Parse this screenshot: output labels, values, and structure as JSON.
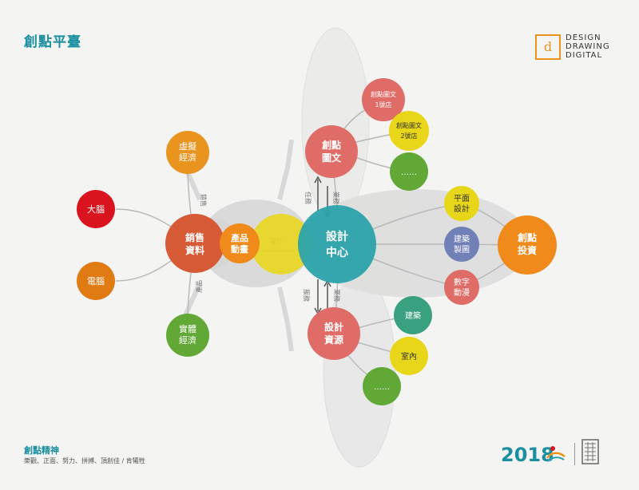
{
  "header": {
    "title": "創點平臺",
    "logo_lines": [
      "DESIGN",
      "DRAWING",
      "DIGITAL"
    ]
  },
  "diagram": {
    "nodes": {
      "virtual_economy": [
        "虛擬",
        "經濟"
      ],
      "brain": [
        "大腦"
      ],
      "computer": [
        "電腦"
      ],
      "sales_data": [
        "銷售",
        "資料"
      ],
      "real_economy": [
        "實體",
        "經濟"
      ],
      "product_animation": [
        "產品",
        "動畫"
      ],
      "design": [
        "設計"
      ],
      "design_center": [
        "設計",
        "中心"
      ],
      "creative_graphics": [
        "創點",
        "圖文"
      ],
      "store_1": [
        "創點圖文",
        "1號店"
      ],
      "store_2": [
        "創點圖文",
        "2號店"
      ],
      "graphics_more": [
        "……"
      ],
      "graphic_design": [
        "平面",
        "設計"
      ],
      "architectural_drawing": [
        "建築",
        "製圖"
      ],
      "digital_animation": [
        "數字",
        "動漫"
      ],
      "creative_investment": [
        "創點",
        "投資"
      ],
      "design_resources": [
        "設計",
        "資源"
      ],
      "architecture": [
        "建築"
      ],
      "interior": [
        "室內"
      ],
      "resources_more": [
        "……"
      ]
    },
    "edge_labels": {
      "sales_virtual": "銷售",
      "sales_real": "產品",
      "design_link": "設計",
      "to_graphics_left": "任務",
      "to_graphics_right": "業務",
      "to_resources_left": "服務",
      "to_resources_right": "業務"
    },
    "colors": {
      "orange": "#e8941f",
      "red": "#d9141e",
      "dark_orange": "#e07a12",
      "sales_red": "#d65a36",
      "green": "#62a836",
      "amber": "#f08a1a",
      "yellow": "#e8d618",
      "teal": "#2aa3ab",
      "salmon": "#e06c68",
      "blue_gray": "#7280b8"
    }
  },
  "footer": {
    "title": "創點精神",
    "text": "樂觀、正面、努力、拼搏、頂創佳 / 肯犧牲",
    "year": "2018"
  }
}
